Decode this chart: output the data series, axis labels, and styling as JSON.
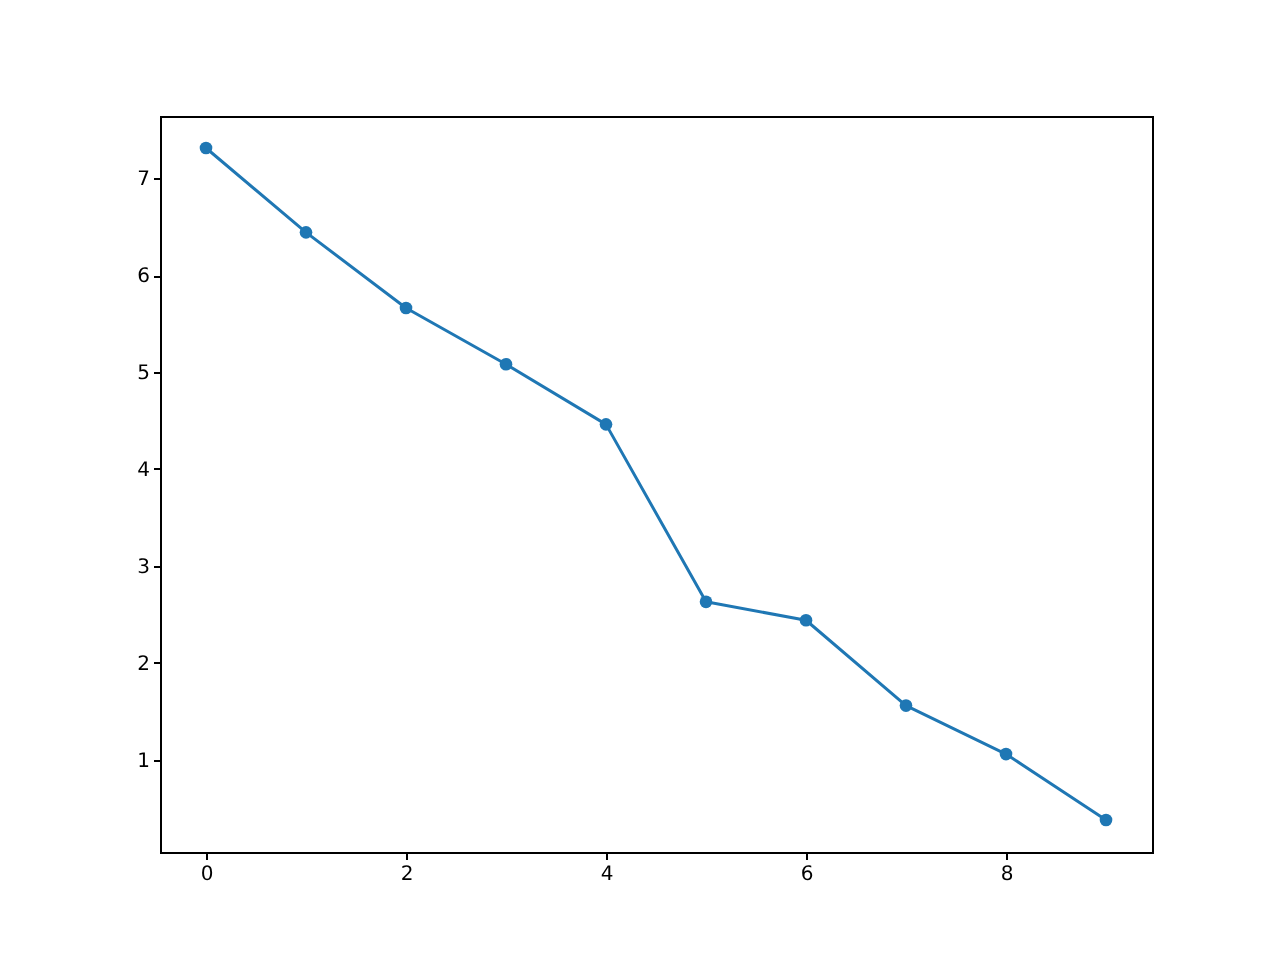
{
  "chart_data": {
    "type": "line",
    "x": [
      0,
      1,
      2,
      3,
      4,
      5,
      6,
      7,
      8,
      9
    ],
    "series": [
      {
        "color": "#1f77b4",
        "values": [
          7.31,
          6.44,
          5.66,
          5.08,
          4.46,
          2.63,
          2.44,
          1.56,
          1.06,
          0.38
        ]
      }
    ],
    "xlim": [
      -0.46,
      9.46
    ],
    "xticks": [
      0,
      2,
      4,
      6,
      8
    ],
    "ylim": [
      0.05,
      7.64
    ],
    "yticks": [
      1,
      2,
      3,
      4,
      5,
      6,
      7
    ],
    "grid": false,
    "marker": "circle",
    "line_style": "solid"
  }
}
